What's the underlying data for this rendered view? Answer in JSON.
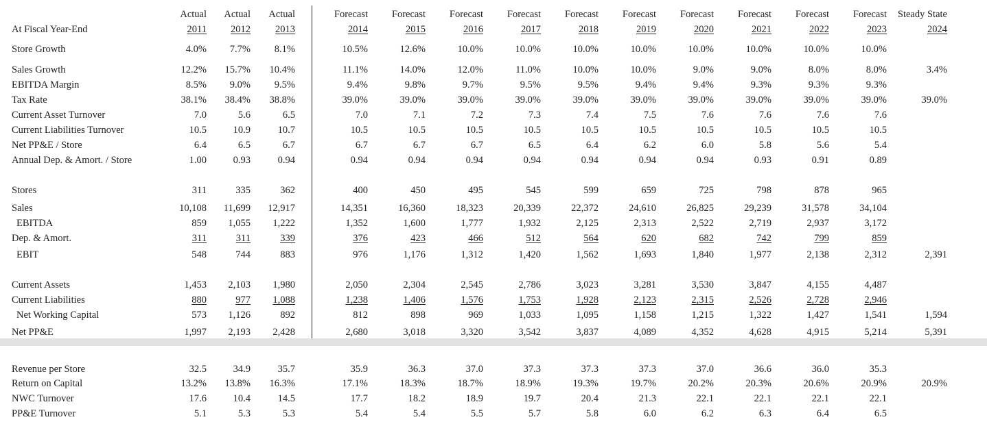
{
  "header": {
    "corner_label": "At Fiscal Year-End",
    "columns": [
      {
        "type": "Actual",
        "year": "2011"
      },
      {
        "type": "Actual",
        "year": "2012"
      },
      {
        "type": "Actual",
        "year": "2013"
      },
      {
        "type": "Forecast",
        "year": "2014"
      },
      {
        "type": "Forecast",
        "year": "2015"
      },
      {
        "type": "Forecast",
        "year": "2016"
      },
      {
        "type": "Forecast",
        "year": "2017"
      },
      {
        "type": "Forecast",
        "year": "2018"
      },
      {
        "type": "Forecast",
        "year": "2019"
      },
      {
        "type": "Forecast",
        "year": "2020"
      },
      {
        "type": "Forecast",
        "year": "2021"
      },
      {
        "type": "Forecast",
        "year": "2022"
      },
      {
        "type": "Forecast",
        "year": "2023"
      },
      {
        "type": "Steady State",
        "year": "2024"
      }
    ]
  },
  "rows": [
    {
      "id": "store-growth",
      "label": "Store Growth",
      "indent": false,
      "underline": false,
      "values": [
        "4.0%",
        "7.7%",
        "8.1%",
        "10.5%",
        "12.6%",
        "10.0%",
        "10.0%",
        "10.0%",
        "10.0%",
        "10.0%",
        "10.0%",
        "10.0%",
        "10.0%",
        ""
      ]
    },
    {
      "id": "sales-growth",
      "label": "Sales Growth",
      "indent": false,
      "underline": false,
      "values": [
        "12.2%",
        "15.7%",
        "10.4%",
        "11.1%",
        "14.0%",
        "12.0%",
        "11.0%",
        "10.0%",
        "10.0%",
        "9.0%",
        "9.0%",
        "8.0%",
        "8.0%",
        "3.4%"
      ]
    },
    {
      "id": "ebitda-margin",
      "label": "EBITDA Margin",
      "indent": false,
      "underline": false,
      "values": [
        "8.5%",
        "9.0%",
        "9.5%",
        "9.4%",
        "9.8%",
        "9.7%",
        "9.5%",
        "9.5%",
        "9.4%",
        "9.4%",
        "9.3%",
        "9.3%",
        "9.3%",
        ""
      ]
    },
    {
      "id": "tax-rate",
      "label": "Tax Rate",
      "indent": false,
      "underline": false,
      "values": [
        "38.1%",
        "38.4%",
        "38.8%",
        "39.0%",
        "39.0%",
        "39.0%",
        "39.0%",
        "39.0%",
        "39.0%",
        "39.0%",
        "39.0%",
        "39.0%",
        "39.0%",
        "39.0%"
      ]
    },
    {
      "id": "ca-turnover",
      "label": "Current Asset Turnover",
      "indent": false,
      "underline": false,
      "values": [
        "7.0",
        "5.6",
        "6.5",
        "7.0",
        "7.1",
        "7.2",
        "7.3",
        "7.4",
        "7.5",
        "7.6",
        "7.6",
        "7.6",
        "7.6",
        ""
      ]
    },
    {
      "id": "cl-turnover",
      "label": "Current Liabilities Turnover",
      "indent": false,
      "underline": false,
      "values": [
        "10.5",
        "10.9",
        "10.7",
        "10.5",
        "10.5",
        "10.5",
        "10.5",
        "10.5",
        "10.5",
        "10.5",
        "10.5",
        "10.5",
        "10.5",
        ""
      ]
    },
    {
      "id": "netppe-store",
      "label": "Net PP&E / Store",
      "indent": false,
      "underline": false,
      "values": [
        "6.4",
        "6.5",
        "6.7",
        "6.7",
        "6.7",
        "6.7",
        "6.5",
        "6.4",
        "6.2",
        "6.0",
        "5.8",
        "5.6",
        "5.4",
        ""
      ]
    },
    {
      "id": "dep-store",
      "label": "Annual Dep. & Amort. / Store",
      "indent": false,
      "underline": false,
      "values": [
        "1.00",
        "0.93",
        "0.94",
        "0.94",
        "0.94",
        "0.94",
        "0.94",
        "0.94",
        "0.94",
        "0.94",
        "0.93",
        "0.91",
        "0.89",
        ""
      ]
    },
    {
      "id": "stores",
      "label": "Stores",
      "indent": false,
      "underline": false,
      "values": [
        "311",
        "335",
        "362",
        "400",
        "450",
        "495",
        "545",
        "599",
        "659",
        "725",
        "798",
        "878",
        "965",
        ""
      ]
    },
    {
      "id": "sales",
      "label": "Sales",
      "indent": false,
      "underline": false,
      "values": [
        "10,108",
        "11,699",
        "12,917",
        "14,351",
        "16,360",
        "18,323",
        "20,339",
        "22,372",
        "24,610",
        "26,825",
        "29,239",
        "31,578",
        "34,104",
        ""
      ]
    },
    {
      "id": "ebitda",
      "label": "EBITDA",
      "indent": true,
      "underline": false,
      "values": [
        "859",
        "1,055",
        "1,222",
        "1,352",
        "1,600",
        "1,777",
        "1,932",
        "2,125",
        "2,313",
        "2,522",
        "2,719",
        "2,937",
        "3,172",
        ""
      ]
    },
    {
      "id": "dep-amort",
      "label": "Dep. & Amort.",
      "indent": false,
      "underline": true,
      "values": [
        "311",
        "311",
        "339",
        "376",
        "423",
        "466",
        "512",
        "564",
        "620",
        "682",
        "742",
        "799",
        "859",
        ""
      ]
    },
    {
      "id": "ebit",
      "label": "EBIT",
      "indent": true,
      "underline": false,
      "values": [
        "548",
        "744",
        "883",
        "976",
        "1,176",
        "1,312",
        "1,420",
        "1,562",
        "1,693",
        "1,840",
        "1,977",
        "2,138",
        "2,312",
        "2,391"
      ]
    },
    {
      "id": "current-assets",
      "label": "Current Assets",
      "indent": false,
      "underline": false,
      "values": [
        "1,453",
        "2,103",
        "1,980",
        "2,050",
        "2,304",
        "2,545",
        "2,786",
        "3,023",
        "3,281",
        "3,530",
        "3,847",
        "4,155",
        "4,487",
        ""
      ]
    },
    {
      "id": "current-liabilities",
      "label": "Current Liabilities",
      "indent": false,
      "underline": true,
      "values": [
        "880",
        "977",
        "1,088",
        "1,238",
        "1,406",
        "1,576",
        "1,753",
        "1,928",
        "2,123",
        "2,315",
        "2,526",
        "2,728",
        "2,946",
        ""
      ]
    },
    {
      "id": "nwc",
      "label": "Net Working Capital",
      "indent": true,
      "underline": false,
      "values": [
        "573",
        "1,126",
        "892",
        "812",
        "898",
        "969",
        "1,033",
        "1,095",
        "1,158",
        "1,215",
        "1,322",
        "1,427",
        "1,541",
        "1,594"
      ]
    },
    {
      "id": "net-ppe",
      "label": "Net PP&E",
      "indent": false,
      "underline": false,
      "values": [
        "1,997",
        "2,193",
        "2,428",
        "2,680",
        "3,018",
        "3,320",
        "3,542",
        "3,837",
        "4,089",
        "4,352",
        "4,628",
        "4,915",
        "5,214",
        "5,391"
      ]
    },
    {
      "id": "rev-store",
      "label": "Revenue per Store",
      "indent": false,
      "underline": false,
      "values": [
        "32.5",
        "34.9",
        "35.7",
        "35.9",
        "36.3",
        "37.0",
        "37.3",
        "37.3",
        "37.3",
        "37.0",
        "36.6",
        "36.0",
        "35.3",
        ""
      ]
    },
    {
      "id": "roc",
      "label": "Return on Capital",
      "indent": false,
      "underline": false,
      "values": [
        "13.2%",
        "13.8%",
        "16.3%",
        "17.1%",
        "18.3%",
        "18.7%",
        "18.9%",
        "19.3%",
        "19.7%",
        "20.2%",
        "20.3%",
        "20.6%",
        "20.9%",
        "20.9%"
      ]
    },
    {
      "id": "nwc-turnover",
      "label": "NWC Turnover",
      "indent": false,
      "underline": false,
      "values": [
        "17.6",
        "10.4",
        "14.5",
        "17.7",
        "18.2",
        "18.9",
        "19.7",
        "20.4",
        "21.3",
        "22.1",
        "22.1",
        "22.1",
        "22.1",
        ""
      ]
    },
    {
      "id": "ppe-turnover",
      "label": "PP&E Turnover",
      "indent": false,
      "underline": false,
      "values": [
        "5.1",
        "5.3",
        "5.3",
        "5.4",
        "5.4",
        "5.5",
        "5.7",
        "5.8",
        "6.0",
        "6.2",
        "6.3",
        "6.4",
        "6.5",
        ""
      ]
    }
  ]
}
